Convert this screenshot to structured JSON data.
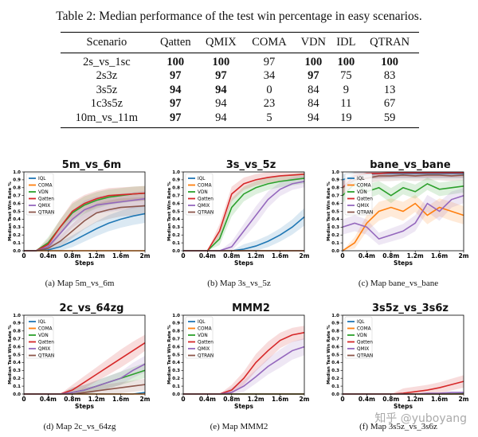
{
  "table": {
    "caption": "Table 2: Median performance of the test win percentage in easy scenarios.",
    "headers": [
      "Scenario",
      "Qatten",
      "QMIX",
      "COMA",
      "VDN",
      "IDL",
      "QTRAN"
    ],
    "rows": [
      {
        "cells": [
          "2s_vs_1sc",
          "100",
          "100",
          "97",
          "100",
          "100",
          "100"
        ],
        "bold": [
          false,
          true,
          true,
          false,
          true,
          true,
          true
        ]
      },
      {
        "cells": [
          "2s3z",
          "97",
          "97",
          "34",
          "97",
          "75",
          "83"
        ],
        "bold": [
          false,
          true,
          true,
          false,
          true,
          false,
          false
        ]
      },
      {
        "cells": [
          "3s5z",
          "94",
          "94",
          "0",
          "84",
          "9",
          "13"
        ],
        "bold": [
          false,
          true,
          true,
          false,
          false,
          false,
          false
        ]
      },
      {
        "cells": [
          "1c3s5z",
          "97",
          "94",
          "23",
          "84",
          "11",
          "67"
        ],
        "bold": [
          false,
          true,
          false,
          false,
          false,
          false,
          false
        ]
      },
      {
        "cells": [
          "10m_vs_11m",
          "97",
          "94",
          "5",
          "94",
          "19",
          "59"
        ],
        "bold": [
          false,
          true,
          false,
          false,
          false,
          false,
          false
        ]
      }
    ]
  },
  "legend": [
    {
      "name": "IQL",
      "color": "#1f77b4"
    },
    {
      "name": "COMA",
      "color": "#ff7f0e"
    },
    {
      "name": "VDN",
      "color": "#2ca02c"
    },
    {
      "name": "Qatten",
      "color": "#d62728"
    },
    {
      "name": "QMIX",
      "color": "#9467bd"
    },
    {
      "name": "QTRAN",
      "color": "#8c564b"
    }
  ],
  "axis": {
    "ylabel": "Median Test Win Rate %",
    "xlabel": "Steps",
    "yticks": [
      "0.0",
      "0.1",
      "0.2",
      "0.3",
      "0.4",
      "0.5",
      "0.6",
      "0.7",
      "0.8",
      "0.9",
      "1.0"
    ],
    "xticks": [
      "0",
      "0.4m",
      "0.8m",
      "1.2m",
      "1.6m",
      "2m"
    ]
  },
  "chart_data": [
    {
      "type": "line",
      "title": "5m_vs_6m",
      "caption": "(a)  Map 5m_vs_6m",
      "xlabel": "Steps",
      "ylabel": "Median Test Win Rate %",
      "xlim": [
        0,
        2
      ],
      "ylim": [
        0,
        1
      ],
      "x": [
        0,
        0.2,
        0.4,
        0.6,
        0.8,
        1.0,
        1.2,
        1.4,
        1.6,
        1.8,
        2.0
      ],
      "series": [
        {
          "name": "IQL",
          "values": [
            0,
            0,
            0.01,
            0.05,
            0.12,
            0.2,
            0.28,
            0.35,
            0.4,
            0.44,
            0.47
          ]
        },
        {
          "name": "COMA",
          "values": [
            0,
            0,
            0,
            0,
            0,
            0,
            0,
            0,
            0,
            0,
            0
          ]
        },
        {
          "name": "VDN",
          "values": [
            0,
            0,
            0.1,
            0.3,
            0.48,
            0.58,
            0.64,
            0.68,
            0.7,
            0.72,
            0.73
          ]
        },
        {
          "name": "Qatten",
          "values": [
            0,
            0,
            0.08,
            0.3,
            0.5,
            0.6,
            0.66,
            0.7,
            0.71,
            0.72,
            0.73
          ]
        },
        {
          "name": "QMIX",
          "values": [
            0,
            0,
            0.05,
            0.22,
            0.4,
            0.52,
            0.58,
            0.6,
            0.62,
            0.64,
            0.66
          ]
        },
        {
          "name": "QTRAN",
          "values": [
            0,
            0,
            0.03,
            0.12,
            0.25,
            0.38,
            0.48,
            0.52,
            0.55,
            0.56,
            0.57
          ]
        }
      ]
    },
    {
      "type": "line",
      "title": "3s_vs_5z",
      "caption": "(b)  Map 3s_vs_5z",
      "xlabel": "Steps",
      "ylabel": "Median Test Win Rate %",
      "xlim": [
        0,
        2
      ],
      "ylim": [
        0,
        1
      ],
      "x": [
        0,
        0.2,
        0.4,
        0.6,
        0.8,
        1.0,
        1.2,
        1.4,
        1.6,
        1.8,
        2.0
      ],
      "series": [
        {
          "name": "IQL",
          "values": [
            0,
            0,
            0,
            0,
            0,
            0.02,
            0.06,
            0.12,
            0.2,
            0.3,
            0.43
          ]
        },
        {
          "name": "COMA",
          "values": [
            0,
            0,
            0,
            0,
            0,
            0,
            0,
            0,
            0,
            0,
            0
          ]
        },
        {
          "name": "VDN",
          "values": [
            0,
            0,
            0,
            0.15,
            0.55,
            0.72,
            0.8,
            0.85,
            0.88,
            0.9,
            0.92
          ]
        },
        {
          "name": "Qatten",
          "values": [
            0,
            0,
            0,
            0.25,
            0.72,
            0.85,
            0.9,
            0.93,
            0.95,
            0.96,
            0.97
          ]
        },
        {
          "name": "QMIX",
          "values": [
            0,
            0,
            0,
            0,
            0.05,
            0.25,
            0.45,
            0.65,
            0.78,
            0.85,
            0.88
          ]
        },
        {
          "name": "QTRAN",
          "values": [
            0,
            0,
            0,
            0,
            0,
            0,
            0,
            0,
            0,
            0,
            0
          ]
        }
      ]
    },
    {
      "type": "line",
      "title": "bane_vs_bane",
      "caption": "(c)  Map bane_vs_bane",
      "xlabel": "Steps",
      "ylabel": "Median Test Win Rate %",
      "xlim": [
        0,
        2
      ],
      "ylim": [
        0,
        1
      ],
      "x": [
        0,
        0.2,
        0.4,
        0.6,
        0.8,
        1.0,
        1.2,
        1.4,
        1.6,
        1.8,
        2.0
      ],
      "series": [
        {
          "name": "IQL",
          "values": [
            0.9,
            0.95,
            0.97,
            0.98,
            0.98,
            0.98,
            0.98,
            0.98,
            0.98,
            0.98,
            0.98
          ]
        },
        {
          "name": "COMA",
          "values": [
            0,
            0.1,
            0.35,
            0.5,
            0.55,
            0.5,
            0.6,
            0.45,
            0.55,
            0.5,
            0.45
          ]
        },
        {
          "name": "VDN",
          "values": [
            0.7,
            0.85,
            0.75,
            0.8,
            0.7,
            0.8,
            0.75,
            0.85,
            0.78,
            0.8,
            0.82
          ]
        },
        {
          "name": "Qatten",
          "values": [
            0.8,
            0.95,
            0.98,
            0.98,
            0.99,
            0.99,
            0.99,
            0.99,
            0.99,
            0.99,
            0.99
          ]
        },
        {
          "name": "QMIX",
          "values": [
            0.3,
            0.35,
            0.3,
            0.15,
            0.2,
            0.25,
            0.35,
            0.6,
            0.5,
            0.65,
            0.7
          ]
        },
        {
          "name": "QTRAN",
          "values": [
            0.8,
            0.9,
            0.92,
            0.95,
            0.95,
            0.96,
            0.95,
            0.96,
            0.96,
            0.95,
            0.96
          ]
        }
      ]
    },
    {
      "type": "line",
      "title": "2c_vs_64zg",
      "caption": "(d)  Map 2c_vs_64zg",
      "xlabel": "Steps",
      "ylabel": "Median Test Win Rate %",
      "xlim": [
        0,
        2
      ],
      "ylim": [
        0,
        1
      ],
      "x": [
        0,
        0.2,
        0.4,
        0.6,
        0.8,
        1.0,
        1.2,
        1.4,
        1.6,
        1.8,
        2.0
      ],
      "series": [
        {
          "name": "IQL",
          "values": [
            0,
            0,
            0,
            0,
            0,
            0,
            0,
            0,
            0,
            0,
            0.02
          ]
        },
        {
          "name": "COMA",
          "values": [
            0,
            0,
            0,
            0,
            0,
            0,
            0,
            0,
            0,
            0,
            0
          ]
        },
        {
          "name": "VDN",
          "values": [
            0,
            0,
            0,
            0,
            0.02,
            0.05,
            0.1,
            0.15,
            0.2,
            0.25,
            0.3
          ]
        },
        {
          "name": "Qatten",
          "values": [
            0,
            0,
            0,
            0,
            0.05,
            0.15,
            0.25,
            0.35,
            0.45,
            0.55,
            0.65
          ]
        },
        {
          "name": "QMIX",
          "values": [
            0,
            0,
            0,
            0,
            0.02,
            0.05,
            0.1,
            0.15,
            0.2,
            0.3,
            0.38
          ]
        },
        {
          "name": "QTRAN",
          "values": [
            0,
            0,
            0,
            0,
            0,
            0.02,
            0.04,
            0.06,
            0.08,
            0.1,
            0.12
          ]
        }
      ]
    },
    {
      "type": "line",
      "title": "MMM2",
      "caption": "(e)  Map MMM2",
      "xlabel": "Steps",
      "ylabel": "Median Test Win Rate %",
      "xlim": [
        0,
        2
      ],
      "ylim": [
        0,
        1
      ],
      "x": [
        0,
        0.2,
        0.4,
        0.6,
        0.8,
        1.0,
        1.2,
        1.4,
        1.6,
        1.8,
        2.0
      ],
      "series": [
        {
          "name": "IQL",
          "values": [
            0,
            0,
            0,
            0,
            0,
            0,
            0,
            0,
            0,
            0,
            0
          ]
        },
        {
          "name": "COMA",
          "values": [
            0,
            0,
            0,
            0,
            0,
            0,
            0,
            0,
            0,
            0,
            0
          ]
        },
        {
          "name": "VDN",
          "values": [
            0,
            0,
            0,
            0,
            0,
            0,
            0,
            0,
            0,
            0,
            0
          ]
        },
        {
          "name": "Qatten",
          "values": [
            0,
            0,
            0,
            0,
            0.05,
            0.2,
            0.4,
            0.55,
            0.68,
            0.75,
            0.78
          ]
        },
        {
          "name": "QMIX",
          "values": [
            0,
            0,
            0,
            0,
            0.02,
            0.1,
            0.22,
            0.35,
            0.45,
            0.55,
            0.6
          ]
        },
        {
          "name": "QTRAN",
          "values": [
            0,
            0,
            0,
            0,
            0,
            0,
            0,
            0,
            0,
            0,
            0
          ]
        }
      ]
    },
    {
      "type": "line",
      "title": "3s5z_vs_3s6z",
      "caption": "(f)  Map 3s5z_vs_3s6z",
      "xlabel": "Steps",
      "ylabel": "Median Test Win Rate %",
      "xlim": [
        0,
        2
      ],
      "ylim": [
        0,
        1
      ],
      "x": [
        0,
        0.2,
        0.4,
        0.6,
        0.8,
        1.0,
        1.2,
        1.4,
        1.6,
        1.8,
        2.0
      ],
      "series": [
        {
          "name": "IQL",
          "values": [
            0,
            0,
            0,
            0,
            0,
            0,
            0,
            0,
            0,
            0,
            0
          ]
        },
        {
          "name": "COMA",
          "values": [
            0,
            0,
            0,
            0,
            0,
            0,
            0,
            0,
            0,
            0,
            0
          ]
        },
        {
          "name": "VDN",
          "values": [
            0,
            0,
            0,
            0,
            0,
            0,
            0,
            0,
            0,
            0,
            0.01
          ]
        },
        {
          "name": "Qatten",
          "values": [
            0,
            0,
            0,
            0,
            0,
            0.01,
            0.03,
            0.05,
            0.08,
            0.12,
            0.16
          ]
        },
        {
          "name": "QMIX",
          "values": [
            0,
            0,
            0,
            0,
            0,
            0,
            0,
            0.01,
            0.01,
            0.02,
            0.02
          ]
        },
        {
          "name": "QTRAN",
          "values": [
            0,
            0,
            0,
            0,
            0,
            0,
            0,
            0,
            0,
            0,
            0
          ]
        }
      ]
    }
  ],
  "watermark": "知乎 @yuboyang"
}
